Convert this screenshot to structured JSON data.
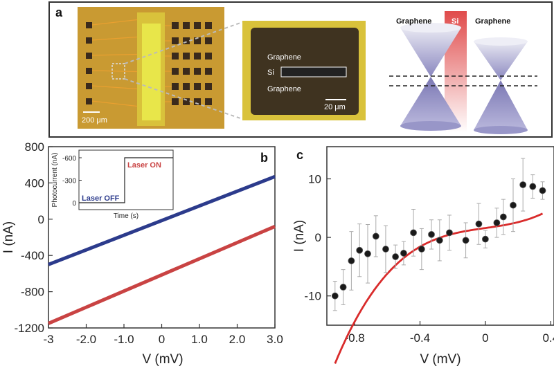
{
  "panel_a": {
    "label": "a",
    "micrograph_scale": "200 μm",
    "zoom_layers": {
      "top": "Graphene",
      "middle": "Si",
      "bottom": "Graphene"
    },
    "zoom_scale": "20 μm",
    "band_labels": {
      "left": "Graphene",
      "center": "Si",
      "right": "Graphene"
    },
    "colors": {
      "chip_gold": "#c99a32",
      "pad": "#3a2a1c",
      "si_strip": "#e8e64a",
      "cone": "#7b78b4",
      "si_bar": "#e04b4b"
    }
  },
  "chart_data": [
    {
      "panel": "b",
      "type": "line",
      "xlabel": "V (mV)",
      "ylabel": "I (nA)",
      "xlim": [
        -3,
        3
      ],
      "ylim": [
        -1200,
        800
      ],
      "xticks": [
        "-3",
        "-2.0",
        "-1.0",
        "0",
        "1.0",
        "2.0",
        "3.0"
      ],
      "yticks": [
        "800",
        "400",
        "0",
        "-400",
        "-800",
        "-1200"
      ],
      "series": [
        {
          "color": "#2c3b8c",
          "x": [
            -3,
            3
          ],
          "y": [
            -500,
            470
          ]
        },
        {
          "color": "#c94343",
          "x": [
            -3,
            3
          ],
          "y": [
            -1150,
            -80
          ]
        }
      ],
      "inset": {
        "xlabel": "Time (s)",
        "ylabel": "Photocurrent (nA)",
        "yticks": [
          "-600",
          "-300",
          "0"
        ],
        "annotations": [
          "Laser ON",
          "Laser OFF"
        ],
        "off_level": 0,
        "on_level": -600
      }
    },
    {
      "panel": "c",
      "type": "scatter",
      "xlabel": "V (mV)",
      "ylabel": "I (nA)",
      "xlim": [
        -0.97,
        0.42
      ],
      "ylim": [
        -15,
        15.5
      ],
      "xticks": [
        "-0.8",
        "-0.4",
        "0",
        "0.4"
      ],
      "yticks": [
        "10",
        "0",
        "-10"
      ],
      "points": [
        {
          "x": -0.92,
          "y": -10,
          "err": 2.5
        },
        {
          "x": -0.87,
          "y": -8.5,
          "err": 3
        },
        {
          "x": -0.82,
          "y": -4,
          "err": 5
        },
        {
          "x": -0.77,
          "y": -2.2,
          "err": 4.5
        },
        {
          "x": -0.72,
          "y": -2.8,
          "err": 5
        },
        {
          "x": -0.67,
          "y": 0.2,
          "err": 3.5
        },
        {
          "x": -0.61,
          "y": -2,
          "err": 4
        },
        {
          "x": -0.55,
          "y": -3.3,
          "err": 2
        },
        {
          "x": -0.5,
          "y": -2.7,
          "err": 2
        },
        {
          "x": -0.44,
          "y": 0.8,
          "err": 4
        },
        {
          "x": -0.39,
          "y": -2,
          "err": 3.5
        },
        {
          "x": -0.33,
          "y": 0.5,
          "err": 2.5
        },
        {
          "x": -0.28,
          "y": -0.5,
          "err": 3.5
        },
        {
          "x": -0.22,
          "y": 0.8,
          "err": 3
        },
        {
          "x": -0.12,
          "y": -0.5,
          "err": 3
        },
        {
          "x": -0.04,
          "y": 2.3,
          "err": 3.5
        },
        {
          "x": 0,
          "y": -0.3,
          "err": 1.5
        },
        {
          "x": 0.07,
          "y": 2.5,
          "err": 2.5
        },
        {
          "x": 0.11,
          "y": 3.5,
          "err": 3
        },
        {
          "x": 0.17,
          "y": 5.5,
          "err": 4.5
        },
        {
          "x": 0.23,
          "y": 9,
          "err": 4.5
        },
        {
          "x": 0.29,
          "y": 8.7,
          "err": 2
        },
        {
          "x": 0.35,
          "y": 8,
          "err": 1.5
        }
      ],
      "fit": {
        "color": "#d92b2b",
        "a": 1.6,
        "b": 0,
        "c": 1.4,
        "d": 25
      }
    }
  ]
}
